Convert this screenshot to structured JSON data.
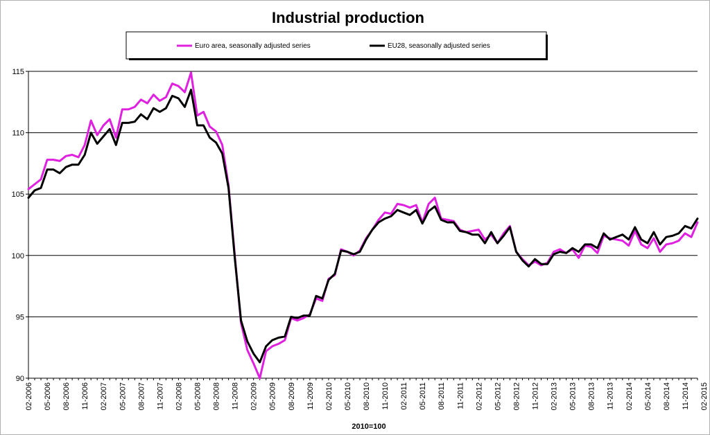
{
  "chart_data": {
    "type": "line",
    "title": "Industrial production",
    "xlabel": "2010=100",
    "ylabel": "",
    "ylim": [
      90,
      115
    ],
    "yticks": [
      90,
      95,
      100,
      105,
      110,
      115
    ],
    "grid": true,
    "legend_position": "top",
    "x_tick_labels": [
      "02-2006",
      "05-2006",
      "08-2006",
      "11-2006",
      "02-2007",
      "05-2007",
      "08-2007",
      "11-2007",
      "02-2008",
      "05-2008",
      "08-2008",
      "11-2008",
      "02-2009",
      "05-2009",
      "08-2009",
      "11-2009",
      "02-2010",
      "05-2010",
      "08-2010",
      "11-2010",
      "02-2011",
      "05-2011",
      "08-2011",
      "11-2011",
      "02-2012",
      "05-2012",
      "08-2012",
      "11-2012",
      "02-2013",
      "05-2013",
      "08-2013",
      "11-2013",
      "02-2014",
      "05-2014",
      "08-2014",
      "11-2014",
      "02-2015"
    ],
    "x_start": "2006-02",
    "x_end": "2015-02",
    "series": [
      {
        "name": "Euro area, seasonally adjusted series",
        "color": "#e020e0",
        "values": [
          105.4,
          105.8,
          106.2,
          107.8,
          107.8,
          107.7,
          108.1,
          108.2,
          108.0,
          109.0,
          111.0,
          109.8,
          110.6,
          111.1,
          109.6,
          111.9,
          111.9,
          112.1,
          112.7,
          112.4,
          113.1,
          112.6,
          112.9,
          114.0,
          113.8,
          113.3,
          114.9,
          111.4,
          111.7,
          110.5,
          110.1,
          109.0,
          105.7,
          100.0,
          94.5,
          92.3,
          91.2,
          90.0,
          92.2,
          92.6,
          92.8,
          93.1,
          94.9,
          94.7,
          94.9,
          95.2,
          96.5,
          96.3,
          98.1,
          98.4,
          100.5,
          100.3,
          100.0,
          100.4,
          101.4,
          102.1,
          102.9,
          103.5,
          103.4,
          104.2,
          104.1,
          103.9,
          104.1,
          102.7,
          104.2,
          104.7,
          103.0,
          102.9,
          102.8,
          102.1,
          101.9,
          102.0,
          102.1,
          101.3,
          101.7,
          101.0,
          101.8,
          102.4,
          100.3,
          99.7,
          99.2,
          99.5,
          99.2,
          99.4,
          100.3,
          100.5,
          100.2,
          100.5,
          99.8,
          100.8,
          100.7,
          100.2,
          101.6,
          101.4,
          101.3,
          101.2,
          100.8,
          102.0,
          100.9,
          100.6,
          101.4,
          100.3,
          100.9,
          101.0,
          101.2,
          101.8,
          101.5,
          102.7
        ]
      },
      {
        "name": "EU28, seasonally adjusted series",
        "color": "#000000",
        "values": [
          104.7,
          105.3,
          105.5,
          107.0,
          107.0,
          106.7,
          107.2,
          107.4,
          107.4,
          108.2,
          110.0,
          109.1,
          109.7,
          110.3,
          109.0,
          110.8,
          110.8,
          110.9,
          111.5,
          111.1,
          112.0,
          111.7,
          112.0,
          113.0,
          112.8,
          112.1,
          113.5,
          110.6,
          110.6,
          109.6,
          109.2,
          108.3,
          105.5,
          99.8,
          94.7,
          93.0,
          92.0,
          91.3,
          92.6,
          93.1,
          93.3,
          93.4,
          95.0,
          94.9,
          95.1,
          95.1,
          96.7,
          96.5,
          98.0,
          98.5,
          100.4,
          100.3,
          100.1,
          100.3,
          101.3,
          102.1,
          102.7,
          103.0,
          103.2,
          103.7,
          103.5,
          103.3,
          103.7,
          102.6,
          103.6,
          104.0,
          102.9,
          102.7,
          102.7,
          102.0,
          101.9,
          101.7,
          101.7,
          101.0,
          101.9,
          101.0,
          101.6,
          102.3,
          100.3,
          99.6,
          99.1,
          99.7,
          99.3,
          99.3,
          100.1,
          100.3,
          100.2,
          100.6,
          100.3,
          100.9,
          100.9,
          100.6,
          101.8,
          101.3,
          101.5,
          101.7,
          101.3,
          102.3,
          101.3,
          101.0,
          101.9,
          100.9,
          101.5,
          101.6,
          101.8,
          102.4,
          102.2,
          103.0
        ]
      }
    ]
  }
}
